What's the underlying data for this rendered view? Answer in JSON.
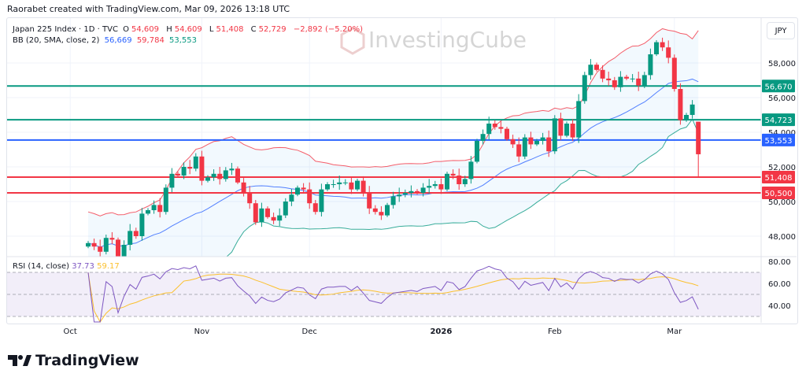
{
  "credit": "Raorabet created with TradingView.com, Mar 09, 2026 13:18 UTC",
  "symbol": {
    "name": "Japan 225 Index · 1D · TVC",
    "o_label": "O",
    "o": "54,609",
    "h_label": "H",
    "h": "54,609",
    "l_label": "L",
    "l": "51,408",
    "c_label": "C",
    "c": "52,729",
    "change": "−2,892 (−5.20%)"
  },
  "bb": {
    "label": "BB (20, SMA, close, 2)",
    "basis": "56,669",
    "upper": "59,784",
    "lower": "53,553"
  },
  "rsi": {
    "label": "RSI (14, close)",
    "value": "37.73",
    "ma": "59.17"
  },
  "currency": "JPY",
  "watermark": "InvestingCube",
  "logo": "TradingView",
  "colors": {
    "up": "#089981",
    "down": "#f23645",
    "basis": "#2962ff",
    "upper": "#f23645",
    "lower": "#089981",
    "rsi": "#7e57c2",
    "rsi_ma": "#fbc02d"
  },
  "chart_data": {
    "type": "candlestick",
    "price_ticks": [
      "58,000",
      "56,000",
      "54,000",
      "52,000",
      "50,000",
      "48,000"
    ],
    "price_tick_values": [
      58000,
      56000,
      54000,
      52000,
      50000,
      48000
    ],
    "rsi_ticks": [
      "80.00",
      "60.00",
      "40.00"
    ],
    "rsi_tick_values": [
      80,
      60,
      40
    ],
    "x_labels": [
      "Oct",
      "Nov",
      "Dec",
      "2026",
      "Feb",
      "Mar"
    ],
    "x_label_index": [
      -3,
      19,
      37,
      59,
      78,
      98
    ],
    "levels": [
      {
        "value": 56670,
        "label": "56,670",
        "color": "#089981"
      },
      {
        "value": 54723,
        "label": "54,723",
        "color": "#089981"
      },
      {
        "value": 53553,
        "label": "53,553",
        "color": "#2962ff"
      },
      {
        "value": 51408,
        "label": "51,408",
        "color": "#f23645"
      },
      {
        "value": 50500,
        "label": "50,500",
        "color": "#f23645"
      }
    ],
    "closes": [
      47600,
      47400,
      47100,
      47900,
      47800,
      46800,
      47500,
      48300,
      48000,
      49300,
      49500,
      49800,
      49400,
      50800,
      51600,
      51500,
      52000,
      51900,
      52600,
      51200,
      51400,
      51600,
      51300,
      51800,
      51900,
      51100,
      50500,
      49900,
      48800,
      49600,
      49100,
      48900,
      49200,
      50000,
      50400,
      50800,
      50700,
      49900,
      49400,
      50700,
      51000,
      51000,
      51100,
      51100,
      50700,
      51200,
      50500,
      49600,
      49400,
      49200,
      49800,
      50300,
      50400,
      50500,
      50600,
      50500,
      50800,
      50900,
      51000,
      50700,
      51600,
      51500,
      51000,
      51300,
      52300,
      53500,
      53900,
      54500,
      54300,
      54200,
      53600,
      53300,
      52600,
      53700,
      53300,
      53500,
      53700,
      52900,
      54800,
      53800,
      54500,
      53700,
      55800,
      57300,
      57900,
      57600,
      57100,
      57000,
      56600,
      57200,
      57100,
      57100,
      56700,
      57300,
      58500,
      59200,
      58900,
      58300,
      56500,
      54700,
      55000,
      55600,
      52729
    ],
    "last_ohlc": [
      54609,
      54609,
      51408,
      52729
    ]
  }
}
